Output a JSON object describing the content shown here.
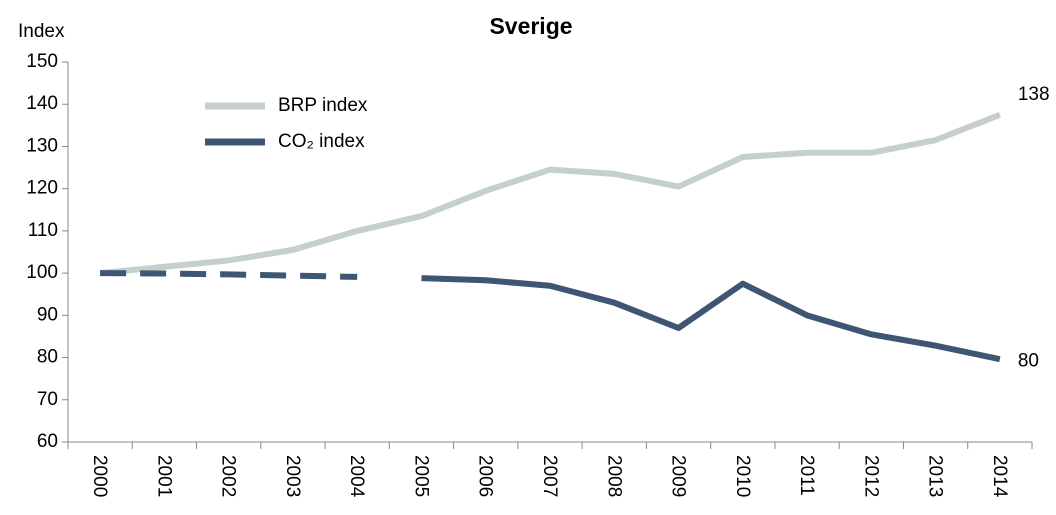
{
  "chart_data": {
    "type": "line",
    "title": "Sverige",
    "y_label": "Index",
    "categories": [
      "2000",
      "2001",
      "2002",
      "2003",
      "2004",
      "2005",
      "2006",
      "2007",
      "2008",
      "2009",
      "2010",
      "2011",
      "2012",
      "2013",
      "2014"
    ],
    "series": [
      {
        "name": "BRP index",
        "color": "#c5d0ca",
        "values": [
          100,
          101.5,
          103,
          105.5,
          110,
          113.5,
          119.5,
          124.5,
          123.5,
          120.5,
          127.5,
          128.5,
          128.5,
          131.5,
          137.5
        ],
        "value_labels": [
          null,
          null,
          null,
          null,
          null,
          null,
          null,
          null,
          null,
          null,
          null,
          null,
          null,
          null,
          "138"
        ]
      },
      {
        "name": "CO₂ index",
        "color": "#3e5573",
        "dashed_through": "2004",
        "values": [
          100,
          99.9,
          99.7,
          99.4,
          99.1,
          98.8,
          98.3,
          97,
          93,
          87,
          97.5,
          90,
          85.5,
          82.8,
          79.6
        ],
        "value_labels": [
          null,
          null,
          null,
          null,
          null,
          null,
          null,
          null,
          null,
          null,
          null,
          null,
          null,
          null,
          "80"
        ]
      }
    ],
    "ylim": [
      60,
      150
    ],
    "yticks": [
      60,
      70,
      80,
      90,
      100,
      110,
      120,
      130,
      140,
      150
    ],
    "grid": false,
    "legend": "upper left"
  }
}
